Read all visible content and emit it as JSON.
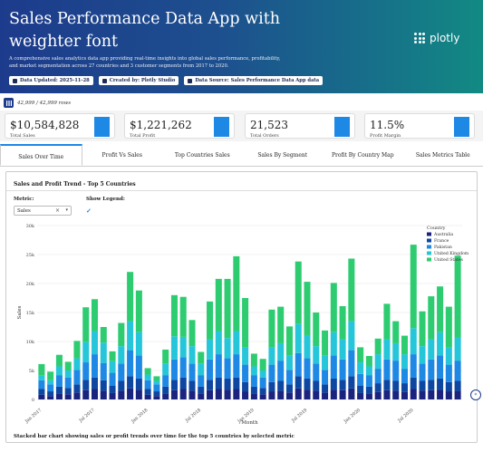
{
  "header": {
    "title": "Sales Performance Data App with weighter font",
    "description": "A comprehensive sales analytics data app providing real-time insights into global sales performance, profitability, and market segmentation across 27 countries and 3 customer segments from 2017 to 2020.",
    "logo_text": "plotly",
    "badges": [
      {
        "label": "Data Updated: 2025-11-28",
        "icon": "calendar-icon"
      },
      {
        "label": "Created by: Plotly Studio",
        "icon": "user-icon"
      },
      {
        "label": "Data Source: Sales Performance Data App data",
        "icon": "database-icon"
      }
    ],
    "colors": {
      "gradient_start": "#1d3b8c",
      "gradient_end": "#128a83"
    }
  },
  "rows_info": {
    "text": "42,999 / 42,999 rows",
    "icon": "rows-icon"
  },
  "kpis": [
    {
      "value": "$10,584,828",
      "label": "Total Sales"
    },
    {
      "value": "$1,221,262",
      "label": "Total Profit"
    },
    {
      "value": "21,523",
      "label": "Total Orders"
    },
    {
      "value": "11.5%",
      "label": "Profit Margin"
    }
  ],
  "tabs": [
    {
      "label": "Sales Over Time",
      "active": true
    },
    {
      "label": "Profit Vs Sales",
      "active": false
    },
    {
      "label": "Top Countries Sales",
      "active": false
    },
    {
      "label": "Sales By Segment",
      "active": false
    },
    {
      "label": "Profit By Country Map",
      "active": false
    },
    {
      "label": "Sales Metrics Table",
      "active": false
    }
  ],
  "panel": {
    "title": "Sales and Profit Trend - Top 5 Countries",
    "metric_label": "Metric:",
    "metric_value": "Sales",
    "legend_label": "Show Legend:",
    "legend_checked": "✓",
    "caption": "Stacked bar chart showing sales or profit trends over time for the top 5 countries by selected metric",
    "collapse_icon": "double-chevron-left-icon"
  },
  "chart_data": {
    "type": "bar",
    "stacked": true,
    "xlabel": "Month",
    "ylabel": "Sales",
    "ylim": [
      0,
      30000
    ],
    "y_ticks": [
      "0",
      "5k",
      "10k",
      "15k",
      "20k",
      "25k",
      "30k"
    ],
    "x_ticks": [
      "Jan 2017",
      "Jul 2017",
      "Jan 2018",
      "Jul 2018",
      "Jan 2019",
      "Jul 2019",
      "Jan 2020",
      "Jul 2020"
    ],
    "legend_title": "Country",
    "legend_position": "top-right",
    "grid": true,
    "series": [
      {
        "name": "Australia",
        "color": "#1a237e"
      },
      {
        "name": "France",
        "color": "#0d47a1"
      },
      {
        "name": "Pakistan",
        "color": "#1e88e5"
      },
      {
        "name": "United Kingdom",
        "color": "#26c6da"
      },
      {
        "name": "United States",
        "color": "#2ecc71"
      }
    ],
    "months": [
      "2017-01",
      "2017-02",
      "2017-03",
      "2017-04",
      "2017-05",
      "2017-06",
      "2017-07",
      "2017-08",
      "2017-09",
      "2017-10",
      "2017-11",
      "2017-12",
      "2018-01",
      "2018-02",
      "2018-03",
      "2018-04",
      "2018-05",
      "2018-06",
      "2018-07",
      "2018-08",
      "2018-09",
      "2018-10",
      "2018-11",
      "2018-12",
      "2019-01",
      "2019-02",
      "2019-03",
      "2019-04",
      "2019-05",
      "2019-06",
      "2019-07",
      "2019-08",
      "2019-09",
      "2019-10",
      "2019-11",
      "2019-12",
      "2020-01",
      "2020-02",
      "2020-03",
      "2020-04",
      "2020-05",
      "2020-06",
      "2020-07",
      "2020-08",
      "2020-09",
      "2020-10",
      "2020-11",
      "2020-12"
    ],
    "values": [
      [
        800,
        1000,
        1500,
        800,
        2000
      ],
      [
        600,
        800,
        1200,
        700,
        1500
      ],
      [
        1000,
        1200,
        2000,
        1500,
        2000
      ],
      [
        900,
        1100,
        1800,
        1200,
        1500
      ],
      [
        1200,
        1400,
        2500,
        2000,
        3000
      ],
      [
        1600,
        1800,
        3000,
        3500,
        6000
      ],
      [
        1800,
        2000,
        4000,
        4000,
        5500
      ],
      [
        1500,
        1800,
        3000,
        3500,
        2700
      ],
      [
        1100,
        1300,
        2200,
        2000,
        1700
      ],
      [
        1500,
        1700,
        3000,
        3000,
        4000
      ],
      [
        1900,
        2100,
        4500,
        5000,
        8500
      ],
      [
        1700,
        1900,
        4000,
        4000,
        7200
      ],
      [
        800,
        1000,
        1500,
        1000,
        1100
      ],
      [
        600,
        800,
        1200,
        600,
        800
      ],
      [
        1000,
        1200,
        2000,
        2000,
        2400
      ],
      [
        1600,
        1800,
        3500,
        4000,
        7100
      ],
      [
        1800,
        2000,
        3500,
        3500,
        6900
      ],
      [
        1500,
        1700,
        3000,
        3000,
        4500
      ],
      [
        1000,
        1200,
        2000,
        2000,
        2000
      ],
      [
        1600,
        1800,
        3500,
        3500,
        6500
      ],
      [
        1800,
        2000,
        4000,
        4000,
        9000
      ],
      [
        1700,
        1900,
        3500,
        3500,
        10200
      ],
      [
        1800,
        2000,
        4000,
        4000,
        12900
      ],
      [
        1400,
        1600,
        3000,
        3000,
        8500
      ],
      [
        1000,
        1200,
        2000,
        1500,
        2200
      ],
      [
        900,
        1100,
        1800,
        1200,
        2000
      ],
      [
        1400,
        1600,
        3000,
        3000,
        6500
      ],
      [
        1500,
        1700,
        3500,
        3000,
        6300
      ],
      [
        1200,
        1400,
        2500,
        2500,
        5000
      ],
      [
        1900,
        2100,
        4000,
        5000,
        10800
      ],
      [
        1700,
        1900,
        3500,
        4000,
        9200
      ],
      [
        1500,
        1700,
        3000,
        3000,
        5800
      ],
      [
        1200,
        1400,
        2500,
        2500,
        4300
      ],
      [
        1700,
        1900,
        4000,
        4000,
        8500
      ],
      [
        1600,
        1800,
        3500,
        3500,
        5700
      ],
      [
        1900,
        2100,
        4500,
        5000,
        10800
      ],
      [
        1100,
        1300,
        2000,
        2000,
        2600
      ],
      [
        1000,
        1200,
        2000,
        1500,
        1800
      ],
      [
        1300,
        1500,
        2500,
        2500,
        2700
      ],
      [
        1600,
        1800,
        3500,
        3500,
        6100
      ],
      [
        1500,
        1700,
        3500,
        3000,
        3800
      ],
      [
        1300,
        1500,
        2500,
        2500,
        3200
      ],
      [
        1800,
        2000,
        4000,
        4500,
        14400
      ],
      [
        1500,
        1700,
        3000,
        3000,
        6000
      ],
      [
        1600,
        1800,
        3500,
        3500,
        7400
      ],
      [
        1700,
        1900,
        4000,
        4000,
        7900
      ],
      [
        1400,
        1600,
        3000,
        3000,
        7000
      ],
      [
        1500,
        1700,
        3500,
        4000,
        14100
      ]
    ]
  }
}
